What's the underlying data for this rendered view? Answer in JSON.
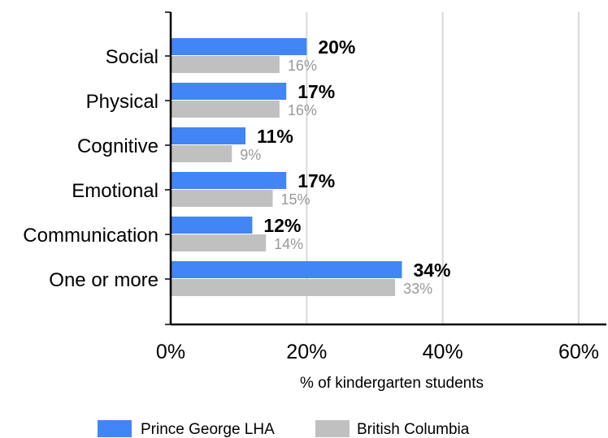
{
  "chart_data": {
    "type": "bar",
    "orientation": "horizontal",
    "categories": [
      "Social",
      "Physical",
      "Cognitive",
      "Emotional",
      "Communication",
      "One or more"
    ],
    "series": [
      {
        "name": "Prince George LHA",
        "values": [
          20,
          17,
          11,
          17,
          12,
          34
        ],
        "labels": [
          "20%",
          "17%",
          "11%",
          "17%",
          "12%",
          "34%"
        ],
        "color": "#4285f4",
        "label_color": "#000000"
      },
      {
        "name": "British Columbia",
        "values": [
          16,
          16,
          9,
          15,
          14,
          33
        ],
        "labels": [
          "16%",
          "16%",
          "9%",
          "15%",
          "14%",
          "33%"
        ],
        "color": "#c0c0c0",
        "label_color": "#999999"
      }
    ],
    "xlim": [
      0,
      60
    ],
    "x_ticks": [
      0,
      20,
      40,
      60
    ],
    "x_tick_labels": [
      "0%",
      "20%",
      "40%",
      "60%"
    ],
    "xlabel": "% of kindergarten students",
    "ylabel": "",
    "title": "",
    "grid": true,
    "grid_color": "#d9d9d9",
    "legend_position": "bottom"
  }
}
